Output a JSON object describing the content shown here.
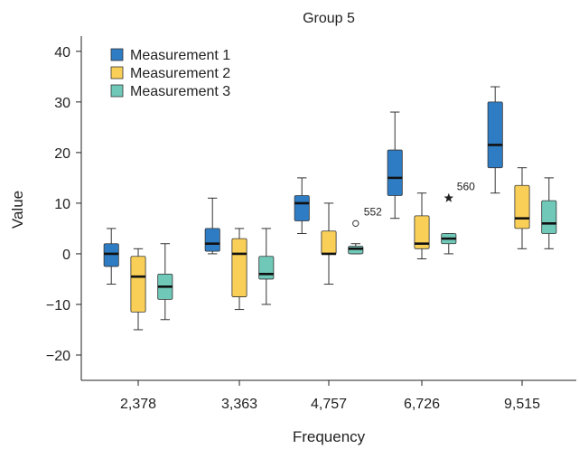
{
  "chart_data": {
    "type": "boxplot",
    "title": "Group 5",
    "xlabel": "Frequency",
    "ylabel": "Value",
    "ylim": [
      -25,
      43
    ],
    "yticks": [
      -20,
      -10,
      0,
      10,
      20,
      30,
      40
    ],
    "ytick_labels": [
      "−20",
      "−10",
      "0",
      "10",
      "20",
      "30",
      "40"
    ],
    "categories": [
      "2,378",
      "3,363",
      "4,757",
      "6,726",
      "9,515"
    ],
    "legend_position": "top-left",
    "grid": false,
    "series": [
      {
        "name": "Measurement 1",
        "color": "#2e7cc4",
        "boxes": [
          {
            "min": -6,
            "q1": -2.5,
            "median": 0,
            "q3": 2,
            "max": 5
          },
          {
            "min": 0,
            "q1": 0.5,
            "median": 2,
            "q3": 5,
            "max": 11
          },
          {
            "min": 4,
            "q1": 6.5,
            "median": 10,
            "q3": 11.5,
            "max": 15
          },
          {
            "min": 7,
            "q1": 11.5,
            "median": 15,
            "q3": 20.5,
            "max": 28
          },
          {
            "min": 12,
            "q1": 17,
            "median": 21.5,
            "q3": 30,
            "max": 33
          }
        ]
      },
      {
        "name": "Measurement 2",
        "color": "#f9cf58",
        "boxes": [
          {
            "min": -15,
            "q1": -11.5,
            "median": -4.5,
            "q3": -0.5,
            "max": 1
          },
          {
            "min": -11,
            "q1": -8.5,
            "median": 0,
            "q3": 3,
            "max": 5
          },
          {
            "min": -6,
            "q1": 0,
            "median": 0,
            "q3": 4.5,
            "max": 10
          },
          {
            "min": -1,
            "q1": 1,
            "median": 2,
            "q3": 7.5,
            "max": 12
          },
          {
            "min": 1,
            "q1": 5,
            "median": 7,
            "q3": 13.5,
            "max": 17
          }
        ]
      },
      {
        "name": "Measurement 3",
        "color": "#6fc8b8",
        "boxes": [
          {
            "min": -13,
            "q1": -9,
            "median": -6.5,
            "q3": -4,
            "max": 2
          },
          {
            "min": -10,
            "q1": -5,
            "median": -4,
            "q3": -0.5,
            "max": 5
          },
          {
            "min": 0,
            "q1": 0,
            "median": 1,
            "q3": 1.5,
            "max": 2
          },
          {
            "min": 0,
            "q1": 2,
            "median": 3,
            "q3": 4,
            "max": 4
          },
          {
            "min": 1,
            "q1": 4,
            "median": 6,
            "q3": 10.5,
            "max": 15
          }
        ]
      }
    ],
    "outliers": [
      {
        "category": "4,757",
        "series": "Measurement 3",
        "value": 6,
        "marker": "circle",
        "label": "552"
      },
      {
        "category": "6,726",
        "series": "Measurement 3",
        "value": 11,
        "marker": "star",
        "label": "560"
      }
    ]
  }
}
